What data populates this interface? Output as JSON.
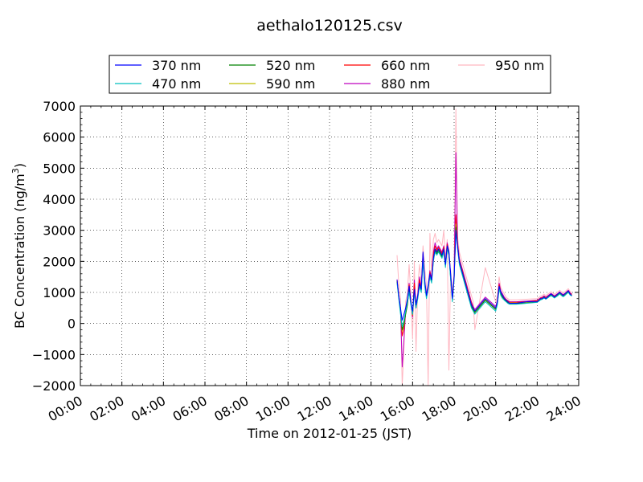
{
  "chart_data": {
    "type": "line",
    "title": "aethalo120125.csv",
    "xlabel": "Time on 2012-01-25 (JST)",
    "ylabel": "BC Concentration (ng/m",
    "ylabel_sup": "3",
    "ylabel_tail": ")",
    "xlim": [
      "00:00",
      "24:00"
    ],
    "ylim": [
      -2000,
      7000
    ],
    "x_ticks": [
      "00:00",
      "02:00",
      "04:00",
      "06:00",
      "08:00",
      "10:00",
      "12:00",
      "14:00",
      "16:00",
      "18:00",
      "20:00",
      "22:00",
      "24:00"
    ],
    "y_ticks": [
      "−2000",
      "−1000",
      "0",
      "1000",
      "2000",
      "3000",
      "4000",
      "5000",
      "6000",
      "7000"
    ],
    "grid": true,
    "legend_position": "top-center",
    "x": [
      "15:15",
      "15:20",
      "15:25",
      "15:30",
      "15:35",
      "15:40",
      "15:45",
      "15:50",
      "15:55",
      "16:00",
      "16:05",
      "16:10",
      "16:15",
      "16:20",
      "16:25",
      "16:30",
      "16:35",
      "16:40",
      "16:45",
      "16:50",
      "16:55",
      "17:00",
      "17:05",
      "17:10",
      "17:15",
      "17:20",
      "17:25",
      "17:30",
      "17:35",
      "17:40",
      "17:45",
      "17:50",
      "17:55",
      "18:00",
      "18:05",
      "18:10",
      "18:15",
      "18:20",
      "18:25",
      "18:30",
      "18:35",
      "18:40",
      "18:45",
      "18:50",
      "18:55",
      "19:00",
      "19:30",
      "20:00",
      "20:05",
      "20:10",
      "20:15",
      "20:20",
      "20:25",
      "20:30",
      "20:35",
      "20:40",
      "20:45",
      "20:50",
      "20:55",
      "21:00",
      "21:30",
      "22:00",
      "22:05",
      "22:10",
      "22:15",
      "22:20",
      "22:25",
      "22:30",
      "22:35",
      "22:40",
      "22:45",
      "22:50",
      "22:55",
      "23:00",
      "23:05",
      "23:10",
      "23:15",
      "23:20",
      "23:25",
      "23:30",
      "23:35",
      "23:40"
    ],
    "series": [
      {
        "name": "370 nm",
        "color": "#0000ff",
        "values": [
          1400,
          900,
          500,
          100,
          300,
          500,
          800,
          1200,
          700,
          400,
          1100,
          600,
          900,
          1300,
          1100,
          2300,
          1400,
          900,
          1200,
          1600,
          1400,
          2100,
          2400,
          2300,
          2400,
          2300,
          2200,
          2400,
          1900,
          2500,
          2300,
          1600,
          800,
          1500,
          3000,
          2500,
          2000,
          1800,
          1600,
          1400,
          1200,
          1000,
          800,
          600,
          500,
          400,
          800,
          500,
          700,
          1200,
          1000,
          900,
          800,
          750,
          700,
          650,
          650,
          650,
          650,
          650,
          700,
          700,
          750,
          800,
          800,
          850,
          800,
          850,
          900,
          950,
          900,
          850,
          900,
          950,
          1000,
          950,
          900,
          950,
          1000,
          1050,
          950,
          900
        ]
      },
      {
        "name": "470 nm",
        "color": "#00bfbf",
        "values": [
          1300,
          800,
          300,
          -100,
          100,
          400,
          700,
          1000,
          600,
          300,
          1000,
          500,
          800,
          1200,
          1000,
          2000,
          1200,
          800,
          1100,
          1500,
          1300,
          2000,
          2300,
          2200,
          2300,
          2200,
          2100,
          2300,
          1800,
          2400,
          2200,
          1400,
          700,
          1400,
          3000,
          2400,
          1900,
          1700,
          1500,
          1300,
          1100,
          900,
          700,
          500,
          400,
          300,
          700,
          400,
          600,
          1100,
          900,
          800,
          750,
          700,
          650,
          620,
          620,
          620,
          620,
          620,
          650,
          680,
          720,
          760,
          780,
          820,
          780,
          820,
          860,
          900,
          860,
          820,
          860,
          900,
          950,
          900,
          860,
          900,
          950,
          1000,
          920,
          880
        ]
      },
      {
        "name": "520 nm",
        "color": "#008000",
        "values": [
          1350,
          850,
          400,
          -200,
          0,
          300,
          600,
          1100,
          650,
          300,
          1050,
          500,
          850,
          1250,
          1050,
          2100,
          1250,
          850,
          1150,
          1550,
          1350,
          2050,
          2350,
          2250,
          2350,
          2250,
          2150,
          2350,
          1850,
          2450,
          2250,
          1450,
          750,
          1450,
          3100,
          2450,
          1950,
          1750,
          1550,
          1350,
          1150,
          950,
          750,
          550,
          450,
          350,
          750,
          450,
          650,
          1150,
          950,
          850,
          780,
          720,
          680,
          640,
          640,
          640,
          640,
          640,
          660,
          690,
          730,
          770,
          790,
          830,
          790,
          830,
          870,
          910,
          870,
          830,
          870,
          910,
          960,
          910,
          870,
          910,
          960,
          1010,
          930,
          890
        ]
      },
      {
        "name": "590 nm",
        "color": "#bfbf00",
        "values": [
          1380,
          880,
          420,
          -250,
          -50,
          320,
          620,
          1120,
          680,
          280,
          1080,
          520,
          880,
          1280,
          1080,
          2150,
          1280,
          880,
          1180,
          1580,
          1380,
          2100,
          2400,
          2300,
          2400,
          2300,
          2200,
          2400,
          1880,
          2500,
          2280,
          1480,
          780,
          1480,
          3200,
          2500,
          2000,
          1800,
          1600,
          1400,
          1200,
          1000,
          800,
          600,
          480,
          380,
          780,
          480,
          680,
          1180,
          980,
          880,
          800,
          740,
          700,
          660,
          660,
          660,
          660,
          660,
          680,
          710,
          750,
          790,
          810,
          850,
          810,
          850,
          890,
          930,
          890,
          850,
          890,
          930,
          980,
          930,
          890,
          930,
          980,
          1030,
          950,
          910
        ]
      },
      {
        "name": "660 nm",
        "color": "#ff0000",
        "values": [
          1400,
          900,
          450,
          -400,
          -150,
          350,
          650,
          1250,
          700,
          250,
          1300,
          550,
          900,
          1400,
          1100,
          2200,
          1300,
          900,
          1200,
          1650,
          1400,
          2200,
          2500,
          2350,
          2450,
          2350,
          2250,
          2450,
          1900,
          2550,
          2300,
          1500,
          800,
          1500,
          3500,
          2550,
          2050,
          1850,
          1650,
          1450,
          1250,
          1050,
          850,
          650,
          500,
          400,
          800,
          500,
          700,
          1250,
          1000,
          900,
          820,
          760,
          720,
          680,
          680,
          680,
          680,
          680,
          700,
          730,
          770,
          810,
          830,
          870,
          830,
          870,
          910,
          950,
          910,
          870,
          910,
          950,
          1000,
          950,
          910,
          950,
          1000,
          1050,
          970,
          930
        ]
      },
      {
        "name": "880 nm",
        "color": "#bf00bf",
        "values": [
          1420,
          920,
          500,
          -1400,
          -500,
          400,
          700,
          1300,
          720,
          200,
          1400,
          600,
          950,
          1500,
          1150,
          2250,
          1350,
          950,
          1250,
          1700,
          1450,
          2300,
          2600,
          2400,
          2500,
          2400,
          2300,
          2500,
          1950,
          2600,
          2350,
          1550,
          850,
          1550,
          5500,
          2600,
          2100,
          1900,
          1700,
          1500,
          1300,
          1100,
          900,
          700,
          550,
          450,
          850,
          550,
          750,
          1300,
          1050,
          950,
          850,
          780,
          740,
          700,
          700,
          700,
          700,
          700,
          720,
          750,
          790,
          830,
          850,
          890,
          850,
          890,
          930,
          970,
          930,
          890,
          930,
          970,
          1020,
          970,
          930,
          970,
          1020,
          1070,
          990,
          950
        ]
      },
      {
        "name": "950 nm",
        "color": "#ffb6c1",
        "values": [
          2200,
          1300,
          800,
          -2000,
          -800,
          700,
          1000,
          1900,
          900,
          -500,
          2000,
          -900,
          1200,
          1900,
          1300,
          2500,
          1800,
          1200,
          -2000,
          2900,
          1600,
          2700,
          2900,
          2600,
          2700,
          2600,
          2500,
          3000,
          2100,
          2700,
          -1500,
          1700,
          900,
          1700,
          6900,
          2800,
          2300,
          2100,
          1900,
          1700,
          1500,
          1300,
          1100,
          900,
          700,
          -200,
          1800,
          700,
          900,
          1500,
          1150,
          1050,
          950,
          850,
          800,
          760,
          760,
          760,
          760,
          760,
          780,
          800,
          840,
          880,
          900,
          940,
          900,
          940,
          980,
          1020,
          980,
          940,
          980,
          1020,
          1070,
          1020,
          980,
          1020,
          1070,
          1120,
          1040,
          1000
        ]
      }
    ]
  }
}
